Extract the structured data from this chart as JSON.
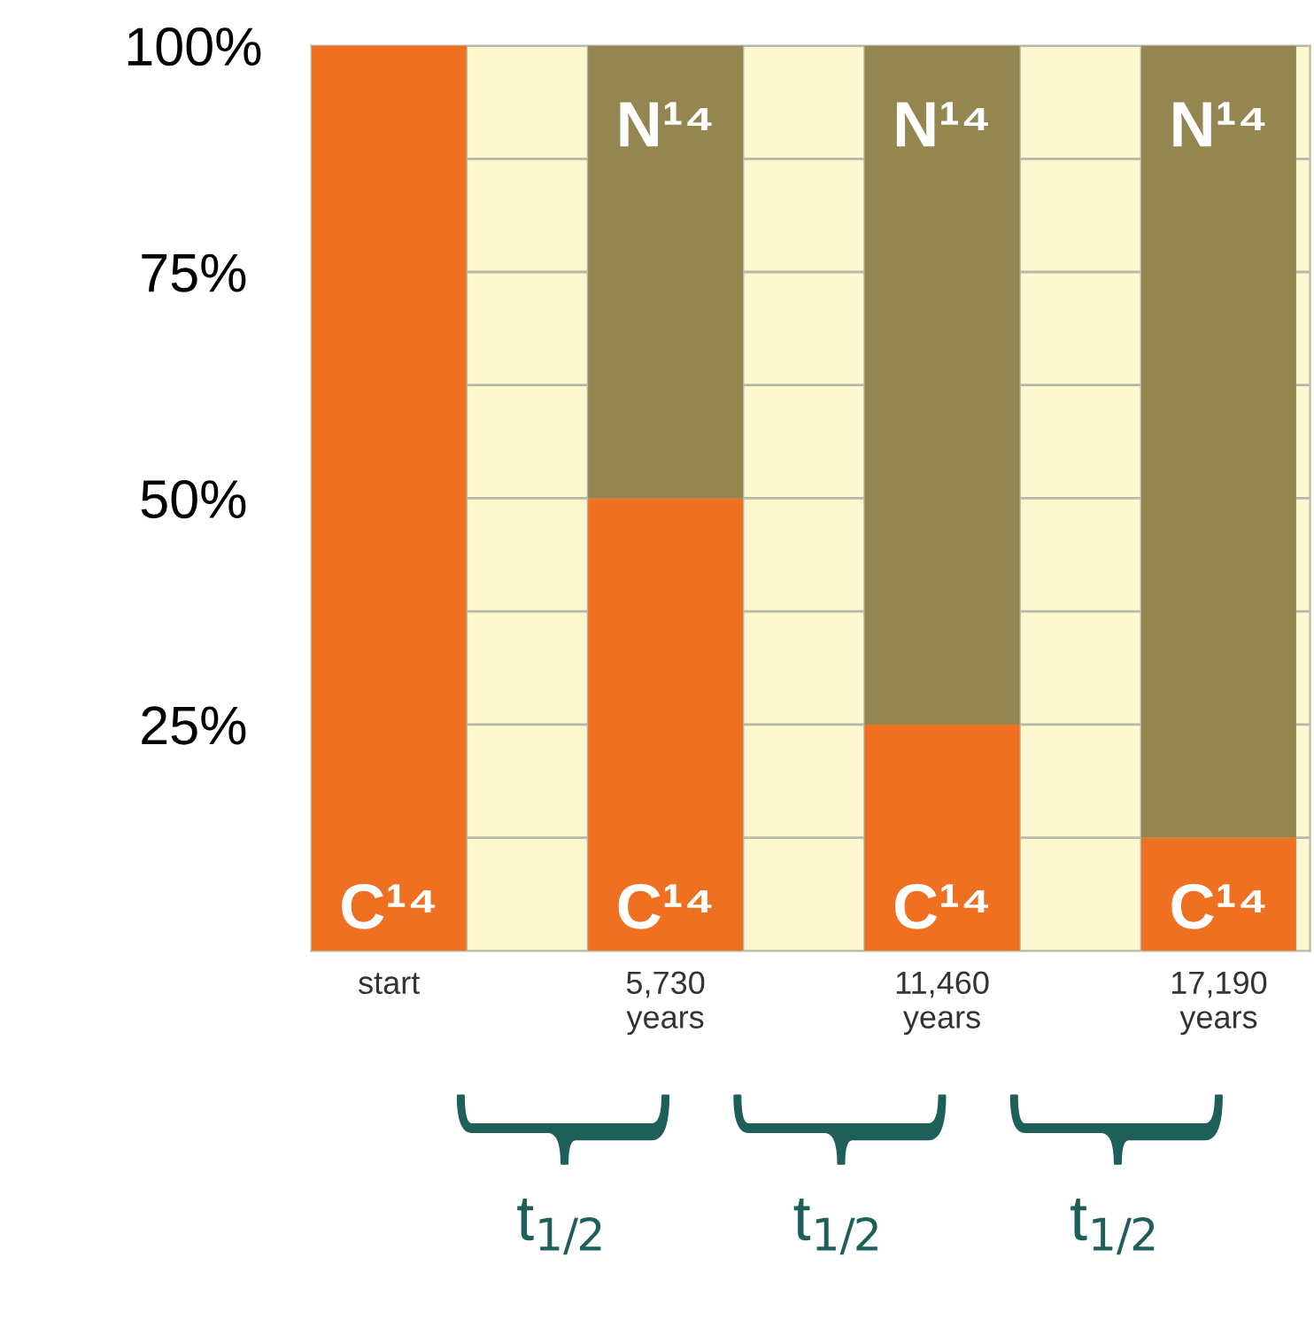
{
  "chart_data": {
    "type": "bar",
    "stacked": true,
    "categories": [
      "start",
      "5,730\nyears",
      "11,460\nyears",
      "17,190\nyears"
    ],
    "series": [
      {
        "name": "C¹⁴",
        "color": "#f07022",
        "values": [
          100,
          50,
          25,
          12.5
        ]
      },
      {
        "name": "N¹⁴",
        "color": "#938651",
        "values": [
          0,
          50,
          75,
          87.5
        ]
      }
    ],
    "ylim": [
      0,
      100
    ],
    "yticks": [
      {
        "value": 12.5,
        "label": null
      },
      {
        "value": 25,
        "label": "25%"
      },
      {
        "value": 37.5,
        "label": null
      },
      {
        "value": 50,
        "label": "50%"
      },
      {
        "value": 62.5,
        "label": null
      },
      {
        "value": 75,
        "label": "75%"
      },
      {
        "value": 87.5,
        "label": null
      },
      {
        "value": 100,
        "label": "100%"
      }
    ],
    "grid": "y",
    "annotations": [
      "t$_{1/2}$",
      "t$_{1/2}$",
      "t$_{1/2}$"
    ]
  }
}
